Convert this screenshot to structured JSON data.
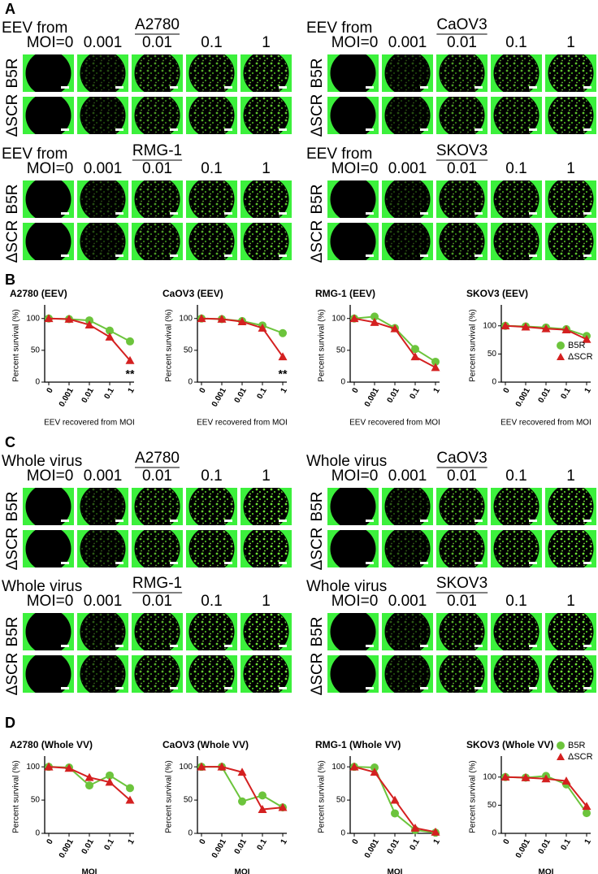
{
  "panel_labels": [
    "A",
    "B",
    "C",
    "D"
  ],
  "image_panels": [
    {
      "grids": [
        {
          "header": "EEV from",
          "cell_line": "A2780",
          "columns": [
            "MOI=0",
            "0.001",
            "0.01",
            "0.1",
            "1"
          ],
          "rows": [
            "B5R",
            "ΔSCR"
          ]
        },
        {
          "header": "EEV from",
          "cell_line": "CaOV3",
          "columns": [
            "MOI=0",
            "0.001",
            "0.01",
            "0.1",
            "1"
          ],
          "rows": [
            "B5R",
            "ΔSCR"
          ]
        },
        {
          "header": "EEV from",
          "cell_line": "RMG-1",
          "columns": [
            "MOI=0",
            "0.001",
            "0.01",
            "0.1",
            "1"
          ],
          "rows": [
            "B5R",
            "ΔSCR"
          ]
        },
        {
          "header": "EEV from",
          "cell_line": "SKOV3",
          "columns": [
            "MOI=0",
            "0.001",
            "0.01",
            "0.1",
            "1"
          ],
          "rows": [
            "B5R",
            "ΔSCR"
          ]
        }
      ]
    },
    {
      "grids": [
        {
          "header": "Whole virus",
          "cell_line": "A2780",
          "columns": [
            "MOI=0",
            "0.001",
            "0.01",
            "0.1",
            "1"
          ],
          "rows": [
            "B5R",
            "ΔSCR"
          ]
        },
        {
          "header": "Whole virus",
          "cell_line": "CaOV3",
          "columns": [
            "MOI=0",
            "0.001",
            "0.01",
            "0.1",
            "1"
          ],
          "rows": [
            "B5R",
            "ΔSCR"
          ]
        },
        {
          "header": "Whole virus",
          "cell_line": "RMG-1",
          "columns": [
            "MOI=0",
            "0.001",
            "0.01",
            "0.1",
            "1"
          ],
          "rows": [
            "B5R",
            "ΔSCR"
          ]
        },
        {
          "header": "Whole virus",
          "cell_line": "SKOV3",
          "columns": [
            "MOI=0",
            "0.001",
            "0.01",
            "0.1",
            "1"
          ],
          "rows": [
            "B5R",
            "ΔSCR"
          ]
        }
      ]
    }
  ],
  "chart_data": [
    {
      "type": "line",
      "title": "A2780 (EEV)",
      "x_label": "EEV recovered from MOI",
      "y_label": "Percent survival (%)",
      "categories": [
        "0",
        "0.001",
        "0.01",
        "0.1",
        "1"
      ],
      "ylim": [
        0,
        115
      ],
      "yticks": [
        0,
        50,
        100
      ],
      "annotation": "**",
      "series": [
        {
          "name": "B5R",
          "color": "#6cc43c",
          "marker": "circle",
          "values": [
            100,
            99,
            97,
            81,
            64
          ]
        },
        {
          "name": "ΔSCR",
          "color": "#d42020",
          "marker": "triangle",
          "values": [
            100,
            99,
            90,
            71,
            34
          ]
        }
      ]
    },
    {
      "type": "line",
      "title": "CaOV3 (EEV)",
      "x_label": "EEV recovered from MOI",
      "y_label": "Percent survival (%)",
      "categories": [
        "0",
        "0.001",
        "0.01",
        "0.1",
        "1"
      ],
      "ylim": [
        0,
        115
      ],
      "yticks": [
        0,
        50,
        100
      ],
      "annotation": "**",
      "series": [
        {
          "name": "B5R",
          "color": "#6cc43c",
          "marker": "circle",
          "values": [
            100,
            99,
            96,
            89,
            77
          ]
        },
        {
          "name": "ΔSCR",
          "color": "#d42020",
          "marker": "triangle",
          "values": [
            100,
            99,
            95,
            85,
            40
          ]
        }
      ]
    },
    {
      "type": "line",
      "title": "RMG-1 (EEV)",
      "x_label": "EEV recovered from MOI",
      "y_label": "Percent survival (%)",
      "categories": [
        "0",
        "0.001",
        "0.01",
        "0.1",
        "1"
      ],
      "ylim": [
        0,
        115
      ],
      "yticks": [
        0,
        50,
        100
      ],
      "series": [
        {
          "name": "B5R",
          "color": "#6cc43c",
          "marker": "circle",
          "values": [
            100,
            103,
            85,
            52,
            32
          ]
        },
        {
          "name": "ΔSCR",
          "color": "#d42020",
          "marker": "triangle",
          "values": [
            100,
            94,
            84,
            40,
            23
          ]
        }
      ]
    },
    {
      "type": "line",
      "title": "SKOV3 (EEV)",
      "x_label": "EEV recovered from MOI",
      "y_label": "Percent survival (%)",
      "categories": [
        "0",
        "0.001",
        "0.01",
        "0.1",
        "1"
      ],
      "ylim": [
        0,
        130
      ],
      "yticks": [
        0,
        50,
        100
      ],
      "legend": "right",
      "series": [
        {
          "name": "B5R",
          "color": "#6cc43c",
          "marker": "circle",
          "values": [
            100,
            99,
            97,
            94,
            82
          ]
        },
        {
          "name": "ΔSCR",
          "color": "#d42020",
          "marker": "triangle",
          "values": [
            100,
            98,
            95,
            93,
            76
          ]
        }
      ]
    },
    {
      "type": "line",
      "title": "A2780 (Whole VV)",
      "x_label": "MOI",
      "y_label": "Percent survival (%)",
      "categories": [
        "0",
        "0.001",
        "0.01",
        "0.1",
        "1"
      ],
      "ylim": [
        0,
        110
      ],
      "yticks": [
        0,
        50,
        100
      ],
      "series": [
        {
          "name": "B5R",
          "color": "#6cc43c",
          "marker": "circle",
          "values": [
            100,
            99,
            72,
            87,
            68
          ]
        },
        {
          "name": "ΔSCR",
          "color": "#d42020",
          "marker": "triangle",
          "values": [
            100,
            98,
            84,
            77,
            50
          ]
        }
      ]
    },
    {
      "type": "line",
      "title": "CaOV3 (Whole VV)",
      "x_label": "MOI",
      "y_label": "Percent survival (%)",
      "categories": [
        "0",
        "0.001",
        "0.01",
        "0.1",
        "1"
      ],
      "ylim": [
        0,
        110
      ],
      "yticks": [
        0,
        50,
        100
      ],
      "series": [
        {
          "name": "B5R",
          "color": "#6cc43c",
          "marker": "circle",
          "values": [
            100,
            100,
            48,
            57,
            39
          ]
        },
        {
          "name": "ΔSCR",
          "color": "#d42020",
          "marker": "triangle",
          "values": [
            100,
            100,
            92,
            36,
            39
          ]
        }
      ]
    },
    {
      "type": "line",
      "title": "RMG-1 (Whole VV)",
      "x_label": "MOI",
      "y_label": "Percent survival (%)",
      "categories": [
        "0",
        "0.001",
        "0.01",
        "0.1",
        "1"
      ],
      "ylim": [
        0,
        110
      ],
      "yticks": [
        0,
        50,
        100
      ],
      "series": [
        {
          "name": "B5R",
          "color": "#6cc43c",
          "marker": "circle",
          "values": [
            100,
            99,
            30,
            5,
            1
          ]
        },
        {
          "name": "ΔSCR",
          "color": "#d42020",
          "marker": "triangle",
          "values": [
            100,
            92,
            50,
            8,
            2
          ]
        }
      ]
    },
    {
      "type": "line",
      "title": "SKOV3 (Whole VV)",
      "x_label": "MOI",
      "y_label": "Percent survival (%)",
      "categories": [
        "0",
        "0.001",
        "0.01",
        "0.1",
        "1"
      ],
      "ylim": [
        0,
        130
      ],
      "yticks": [
        0,
        50,
        100
      ],
      "legend": "upper right",
      "series": [
        {
          "name": "B5R",
          "color": "#6cc43c",
          "marker": "circle",
          "values": [
            100,
            99,
            102,
            87,
            36
          ]
        },
        {
          "name": "ΔSCR",
          "color": "#d42020",
          "marker": "triangle",
          "values": [
            100,
            99,
            97,
            93,
            48
          ]
        }
      ]
    }
  ]
}
